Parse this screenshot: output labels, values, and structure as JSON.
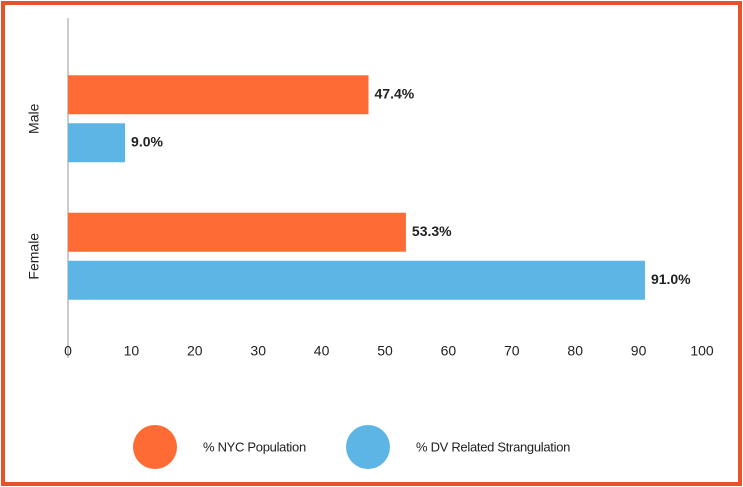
{
  "chart_data": {
    "type": "bar",
    "orientation": "horizontal",
    "categories": [
      "Male",
      "Female"
    ],
    "series": [
      {
        "name": "% NYC Population",
        "color": "#ff6b35",
        "values": [
          47.4,
          53.3
        ],
        "value_labels": [
          "47.4%",
          "53.3%"
        ]
      },
      {
        "name": "% DV Related Strangulation",
        "color": "#5db5e5",
        "values": [
          9.0,
          91.0
        ],
        "value_labels": [
          "9.0%",
          "91.0%"
        ]
      }
    ],
    "xlim": [
      0,
      100
    ],
    "xticks": [
      0,
      10,
      20,
      30,
      40,
      50,
      60,
      70,
      80,
      90,
      100
    ],
    "legend": "bottom"
  }
}
